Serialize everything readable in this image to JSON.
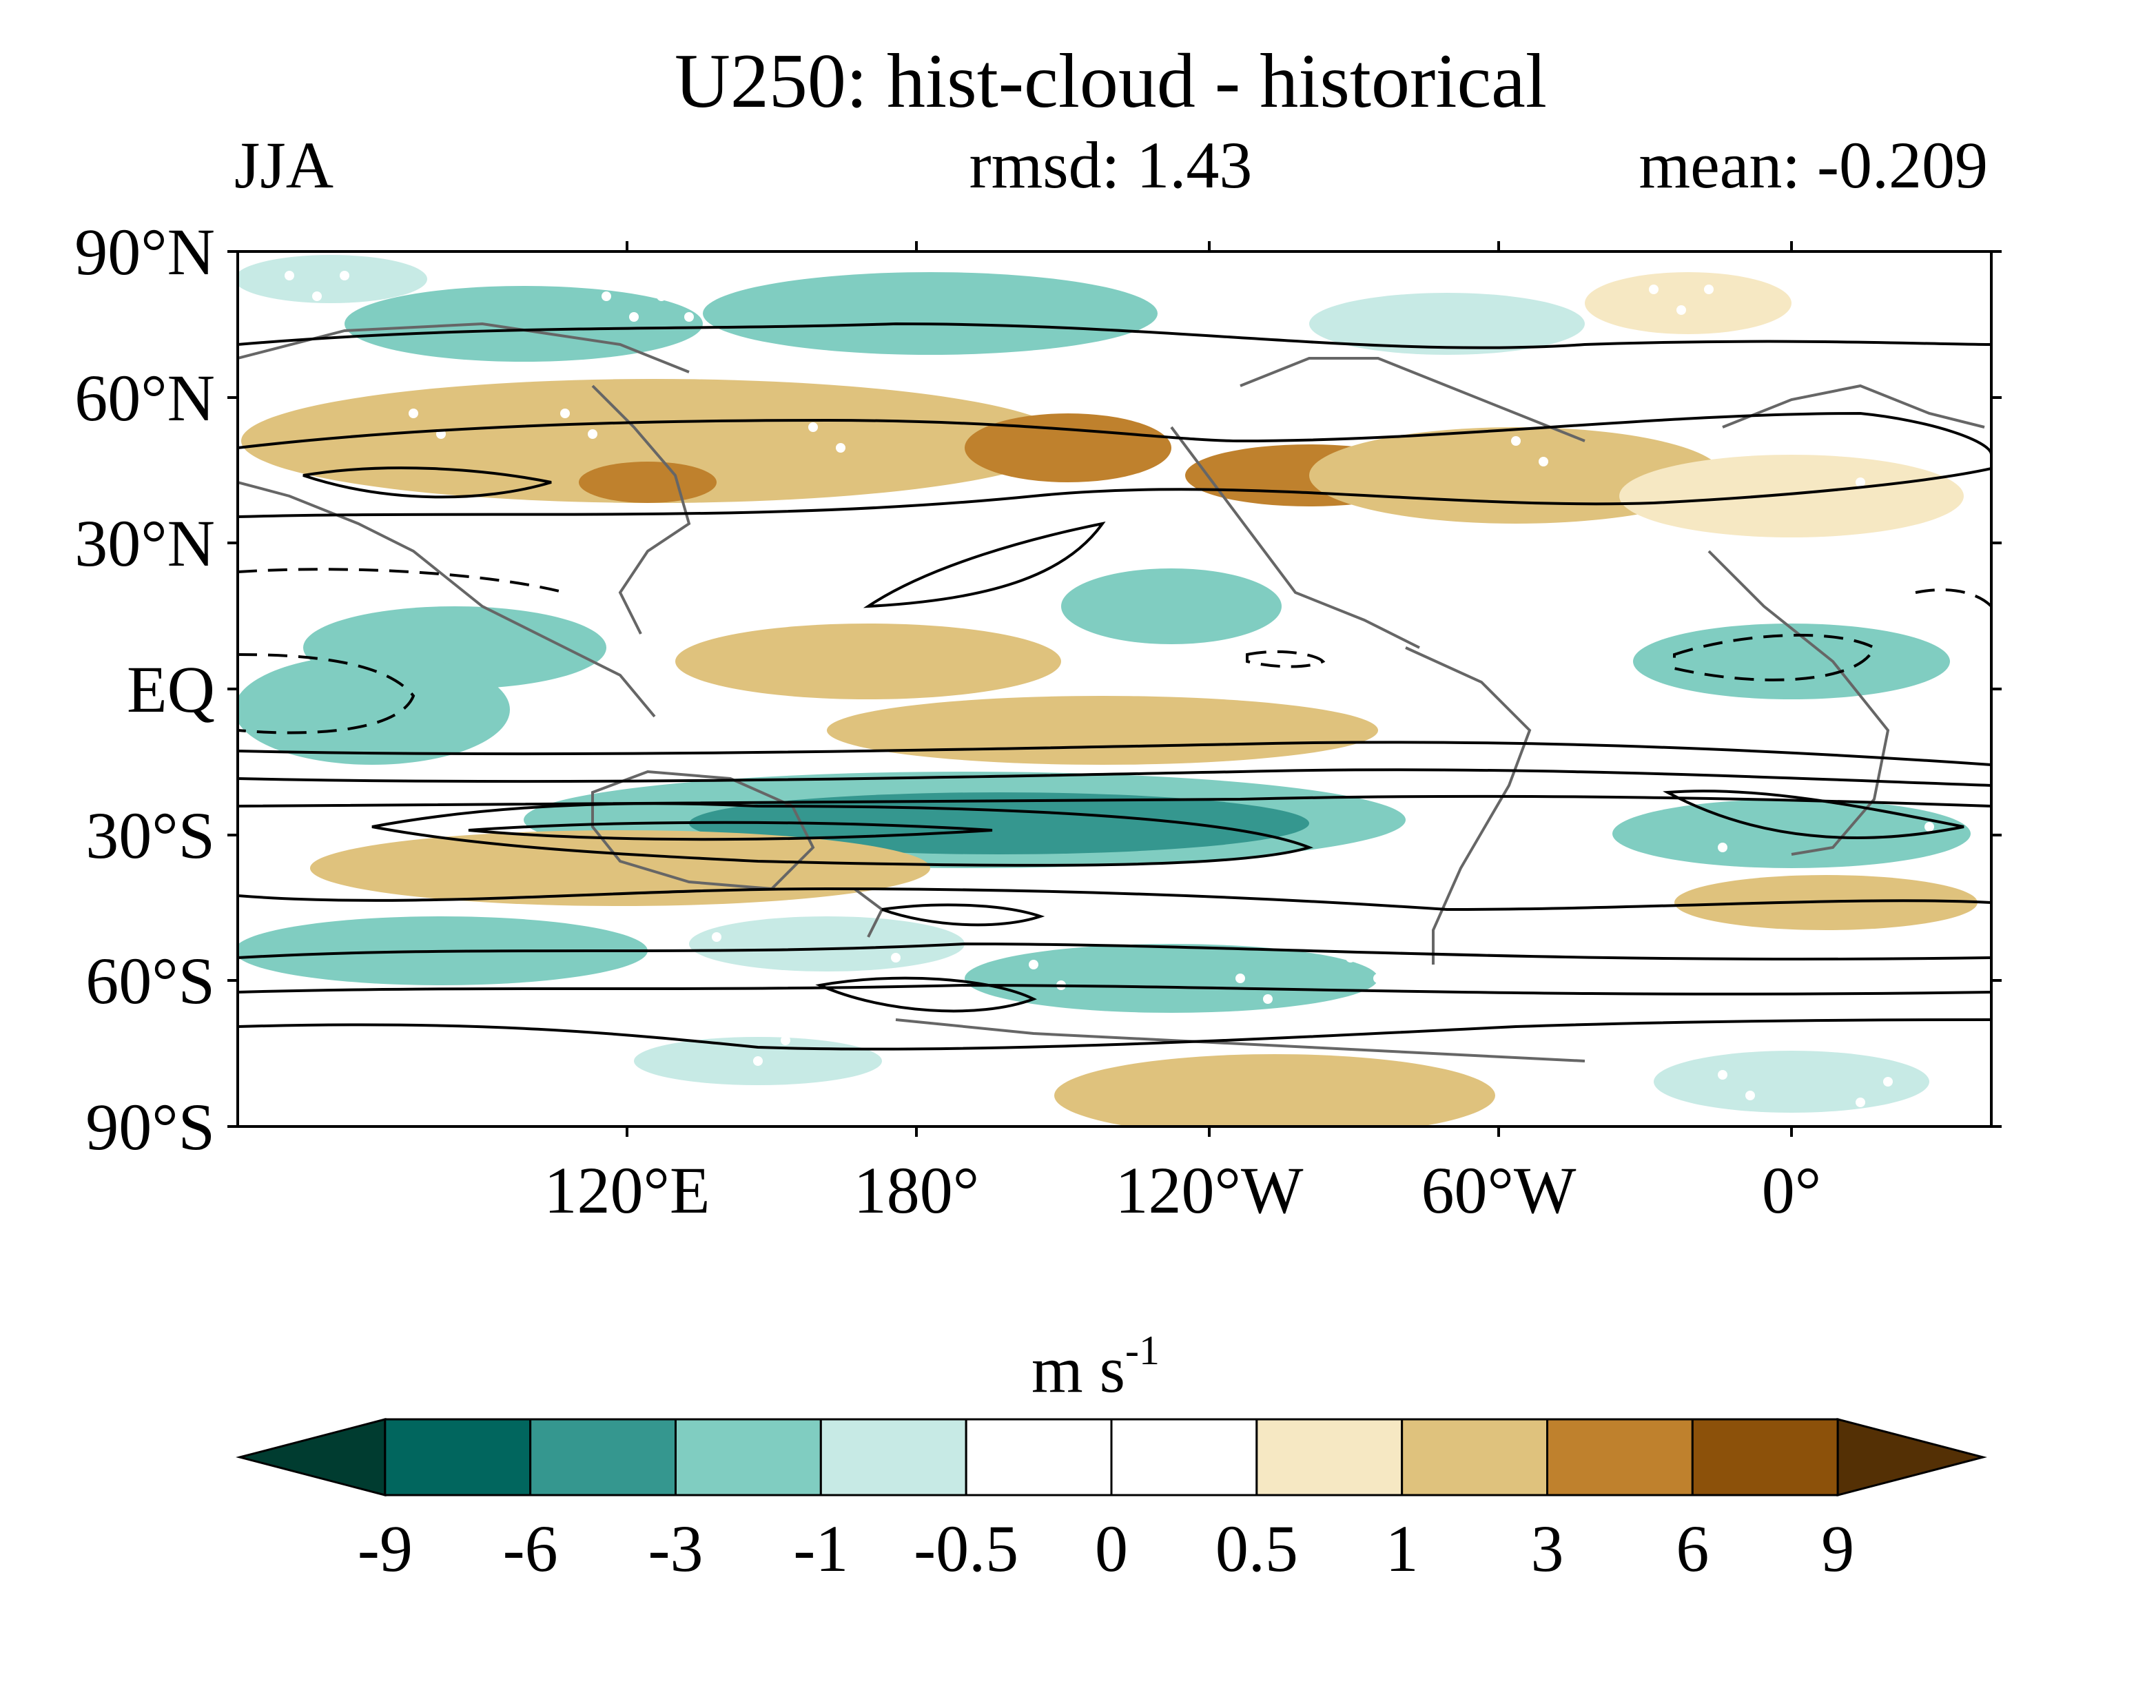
{
  "title": "U250: hist-cloud - historical",
  "season": "JJA",
  "rmsd_label": "rmsd: 1.43",
  "mean_label": "mean: -0.209",
  "map": {
    "projection": "cylindrical equidistant",
    "central_longitude": 150,
    "lat_range": [
      -90,
      90
    ],
    "lon_range": [
      60,
      420
    ],
    "lat_ticks": [
      {
        "value": 90,
        "label": "90°N"
      },
      {
        "value": 60,
        "label": "60°N"
      },
      {
        "value": 30,
        "label": "30°N"
      },
      {
        "value": 0,
        "label": "EQ"
      },
      {
        "value": -30,
        "label": "30°S"
      },
      {
        "value": -60,
        "label": "60°S"
      },
      {
        "value": -90,
        "label": "90°S"
      }
    ],
    "lon_ticks": [
      {
        "value": 120,
        "label": "120°E"
      },
      {
        "value": 180,
        "label": "180°"
      },
      {
        "value": 240,
        "label": "120°W"
      },
      {
        "value": 300,
        "label": "60°W"
      },
      {
        "value": 360,
        "label": "0°"
      }
    ],
    "stippling": "white dots mark significant differences",
    "contours": "black lines: climatological U250 (dashed = negative)"
  },
  "colorbar": {
    "unit_base": "m s",
    "unit_exp": "-1",
    "levels": [
      "-9",
      "-6",
      "-3",
      "-1",
      "-0.5",
      "0",
      "0.5",
      "1",
      "3",
      "6",
      "9"
    ],
    "colors": [
      "#003c30",
      "#01665e",
      "#35978f",
      "#80cdc1",
      "#c7eae5",
      "#ffffff",
      "#ffffff",
      "#f6e8c3",
      "#dfc27d",
      "#bf812d",
      "#8c510a",
      "#543005"
    ]
  }
}
